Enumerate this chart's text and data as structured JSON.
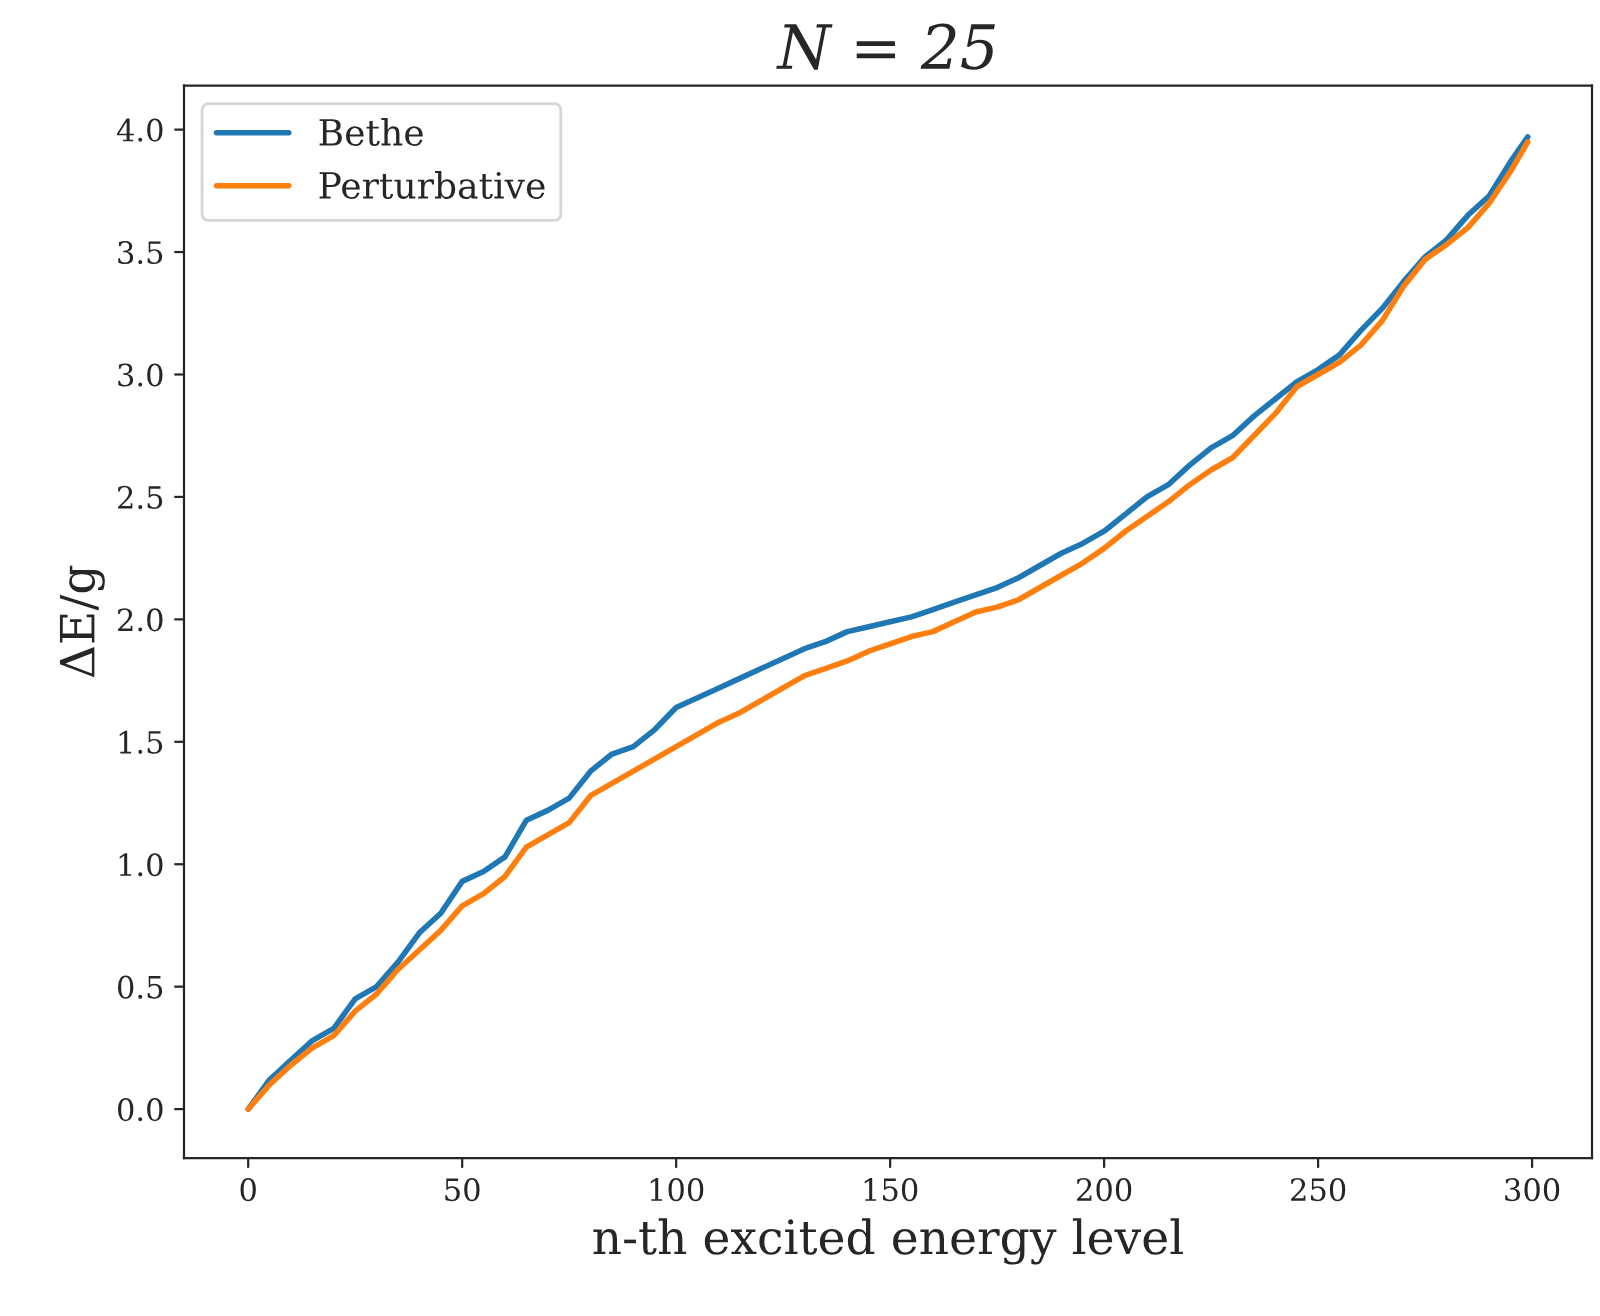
{
  "chart_data": {
    "type": "line",
    "title": "N = 25",
    "xlabel": "n-th excited energy level",
    "ylabel": "ΔE/g",
    "x": [
      0,
      5,
      10,
      15,
      20,
      25,
      30,
      35,
      40,
      45,
      50,
      55,
      60,
      65,
      70,
      75,
      80,
      85,
      90,
      95,
      100,
      105,
      110,
      115,
      120,
      125,
      130,
      135,
      140,
      145,
      150,
      155,
      160,
      165,
      170,
      175,
      180,
      185,
      190,
      195,
      200,
      205,
      210,
      215,
      220,
      225,
      230,
      235,
      240,
      245,
      250,
      255,
      260,
      265,
      270,
      275,
      280,
      285,
      290,
      295,
      299
    ],
    "series": [
      {
        "name": "Bethe",
        "color": "#1f77b4",
        "values": [
          0.0,
          0.12,
          0.2,
          0.28,
          0.33,
          0.45,
          0.5,
          0.6,
          0.72,
          0.8,
          0.93,
          0.97,
          1.03,
          1.18,
          1.22,
          1.27,
          1.38,
          1.45,
          1.48,
          1.55,
          1.64,
          1.68,
          1.72,
          1.76,
          1.8,
          1.84,
          1.88,
          1.91,
          1.95,
          1.97,
          1.99,
          2.01,
          2.04,
          2.07,
          2.1,
          2.13,
          2.17,
          2.22,
          2.27,
          2.31,
          2.36,
          2.43,
          2.5,
          2.55,
          2.63,
          2.7,
          2.75,
          2.83,
          2.9,
          2.97,
          3.02,
          3.08,
          3.18,
          3.27,
          3.38,
          3.48,
          3.55,
          3.65,
          3.73,
          3.87,
          3.97
        ]
      },
      {
        "name": "Perturbative",
        "color": "#ff7f0e",
        "values": [
          0.0,
          0.1,
          0.18,
          0.25,
          0.3,
          0.4,
          0.47,
          0.57,
          0.65,
          0.73,
          0.83,
          0.88,
          0.95,
          1.07,
          1.12,
          1.17,
          1.28,
          1.33,
          1.38,
          1.43,
          1.48,
          1.53,
          1.58,
          1.62,
          1.67,
          1.72,
          1.77,
          1.8,
          1.83,
          1.87,
          1.9,
          1.93,
          1.95,
          1.99,
          2.03,
          2.05,
          2.08,
          2.13,
          2.18,
          2.23,
          2.29,
          2.36,
          2.42,
          2.48,
          2.55,
          2.61,
          2.66,
          2.75,
          2.84,
          2.95,
          3.0,
          3.05,
          3.12,
          3.22,
          3.36,
          3.47,
          3.53,
          3.6,
          3.7,
          3.83,
          3.95
        ]
      }
    ],
    "xlim": [
      -15,
      314
    ],
    "ylim": [
      -0.2,
      4.18
    ],
    "xticks": [
      0,
      50,
      100,
      150,
      200,
      250,
      300
    ],
    "yticks": [
      {
        "value": 0,
        "label": "0.0"
      },
      {
        "value": 0.5,
        "label": "0.5"
      },
      {
        "value": 1,
        "label": "1.0"
      },
      {
        "value": 1.5,
        "label": "1.5"
      },
      {
        "value": 2,
        "label": "2.0"
      },
      {
        "value": 2.5,
        "label": "2.5"
      },
      {
        "value": 3,
        "label": "3.0"
      },
      {
        "value": 3.5,
        "label": "3.5"
      },
      {
        "value": 4,
        "label": "4.0"
      }
    ],
    "legend": "top left",
    "grid": false
  }
}
